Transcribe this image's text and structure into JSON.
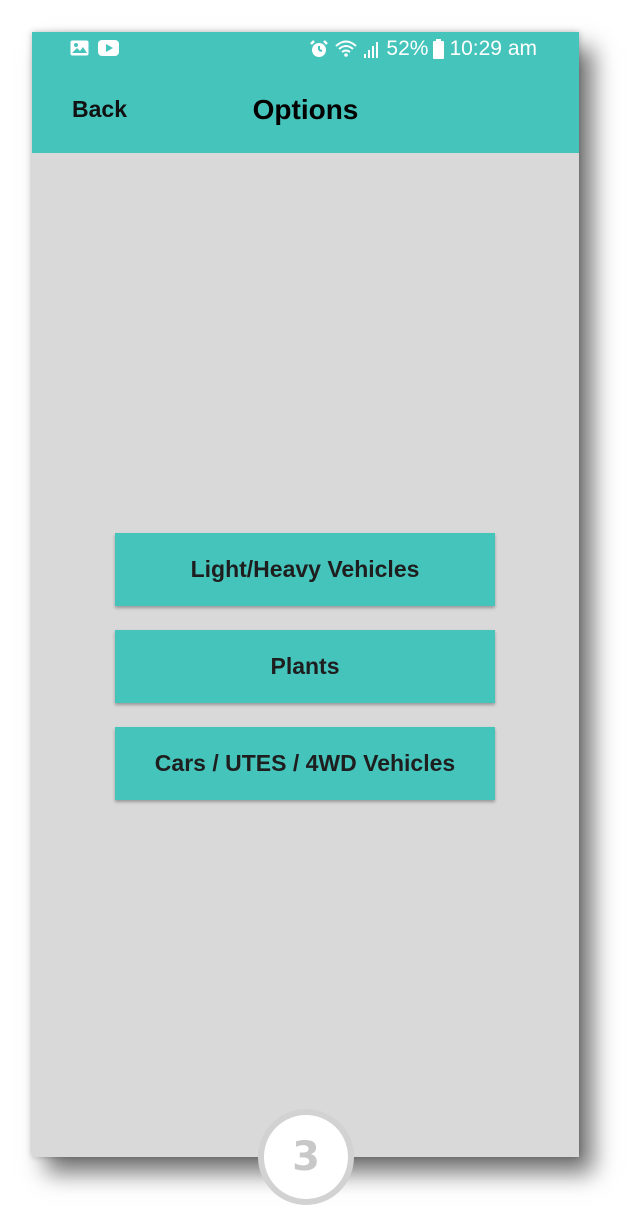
{
  "status_bar": {
    "battery_percent": "52%",
    "time": "10:29 am",
    "icons": [
      "gallery-icon",
      "youtube-icon",
      "alarm-icon",
      "wifi-icon",
      "signal-icon",
      "battery-icon"
    ]
  },
  "nav": {
    "back_label": "Back",
    "title": "Options"
  },
  "options": [
    {
      "label": "Light/Heavy Vehicles"
    },
    {
      "label": "Plants"
    },
    {
      "label": "Cars / UTES / 4WD Vehicles"
    }
  ],
  "step_badge": "3",
  "colors": {
    "accent": "#45c4bc",
    "background": "#d9d9d9"
  }
}
